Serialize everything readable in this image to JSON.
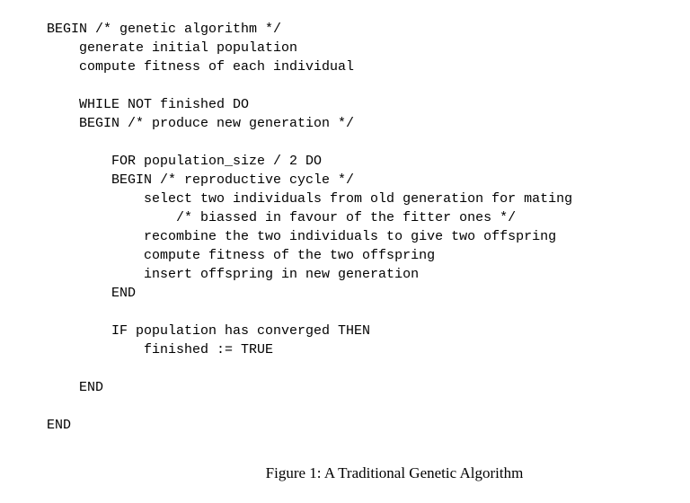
{
  "code": {
    "lines": [
      "BEGIN /* genetic algorithm */",
      "    generate initial population",
      "    compute fitness of each individual",
      "",
      "    WHILE NOT finished DO",
      "    BEGIN /* produce new generation */",
      "",
      "        FOR population_size / 2 DO",
      "        BEGIN /* reproductive cycle */",
      "            select two individuals from old generation for mating",
      "                /* biassed in favour of the fitter ones */",
      "            recombine the two individuals to give two offspring",
      "            compute fitness of the two offspring",
      "            insert offspring in new generation",
      "        END",
      "",
      "        IF population has converged THEN",
      "            finished := TRUE",
      "",
      "    END",
      "",
      "END"
    ]
  },
  "caption": "Figure 1: A Traditional Genetic Algorithm"
}
